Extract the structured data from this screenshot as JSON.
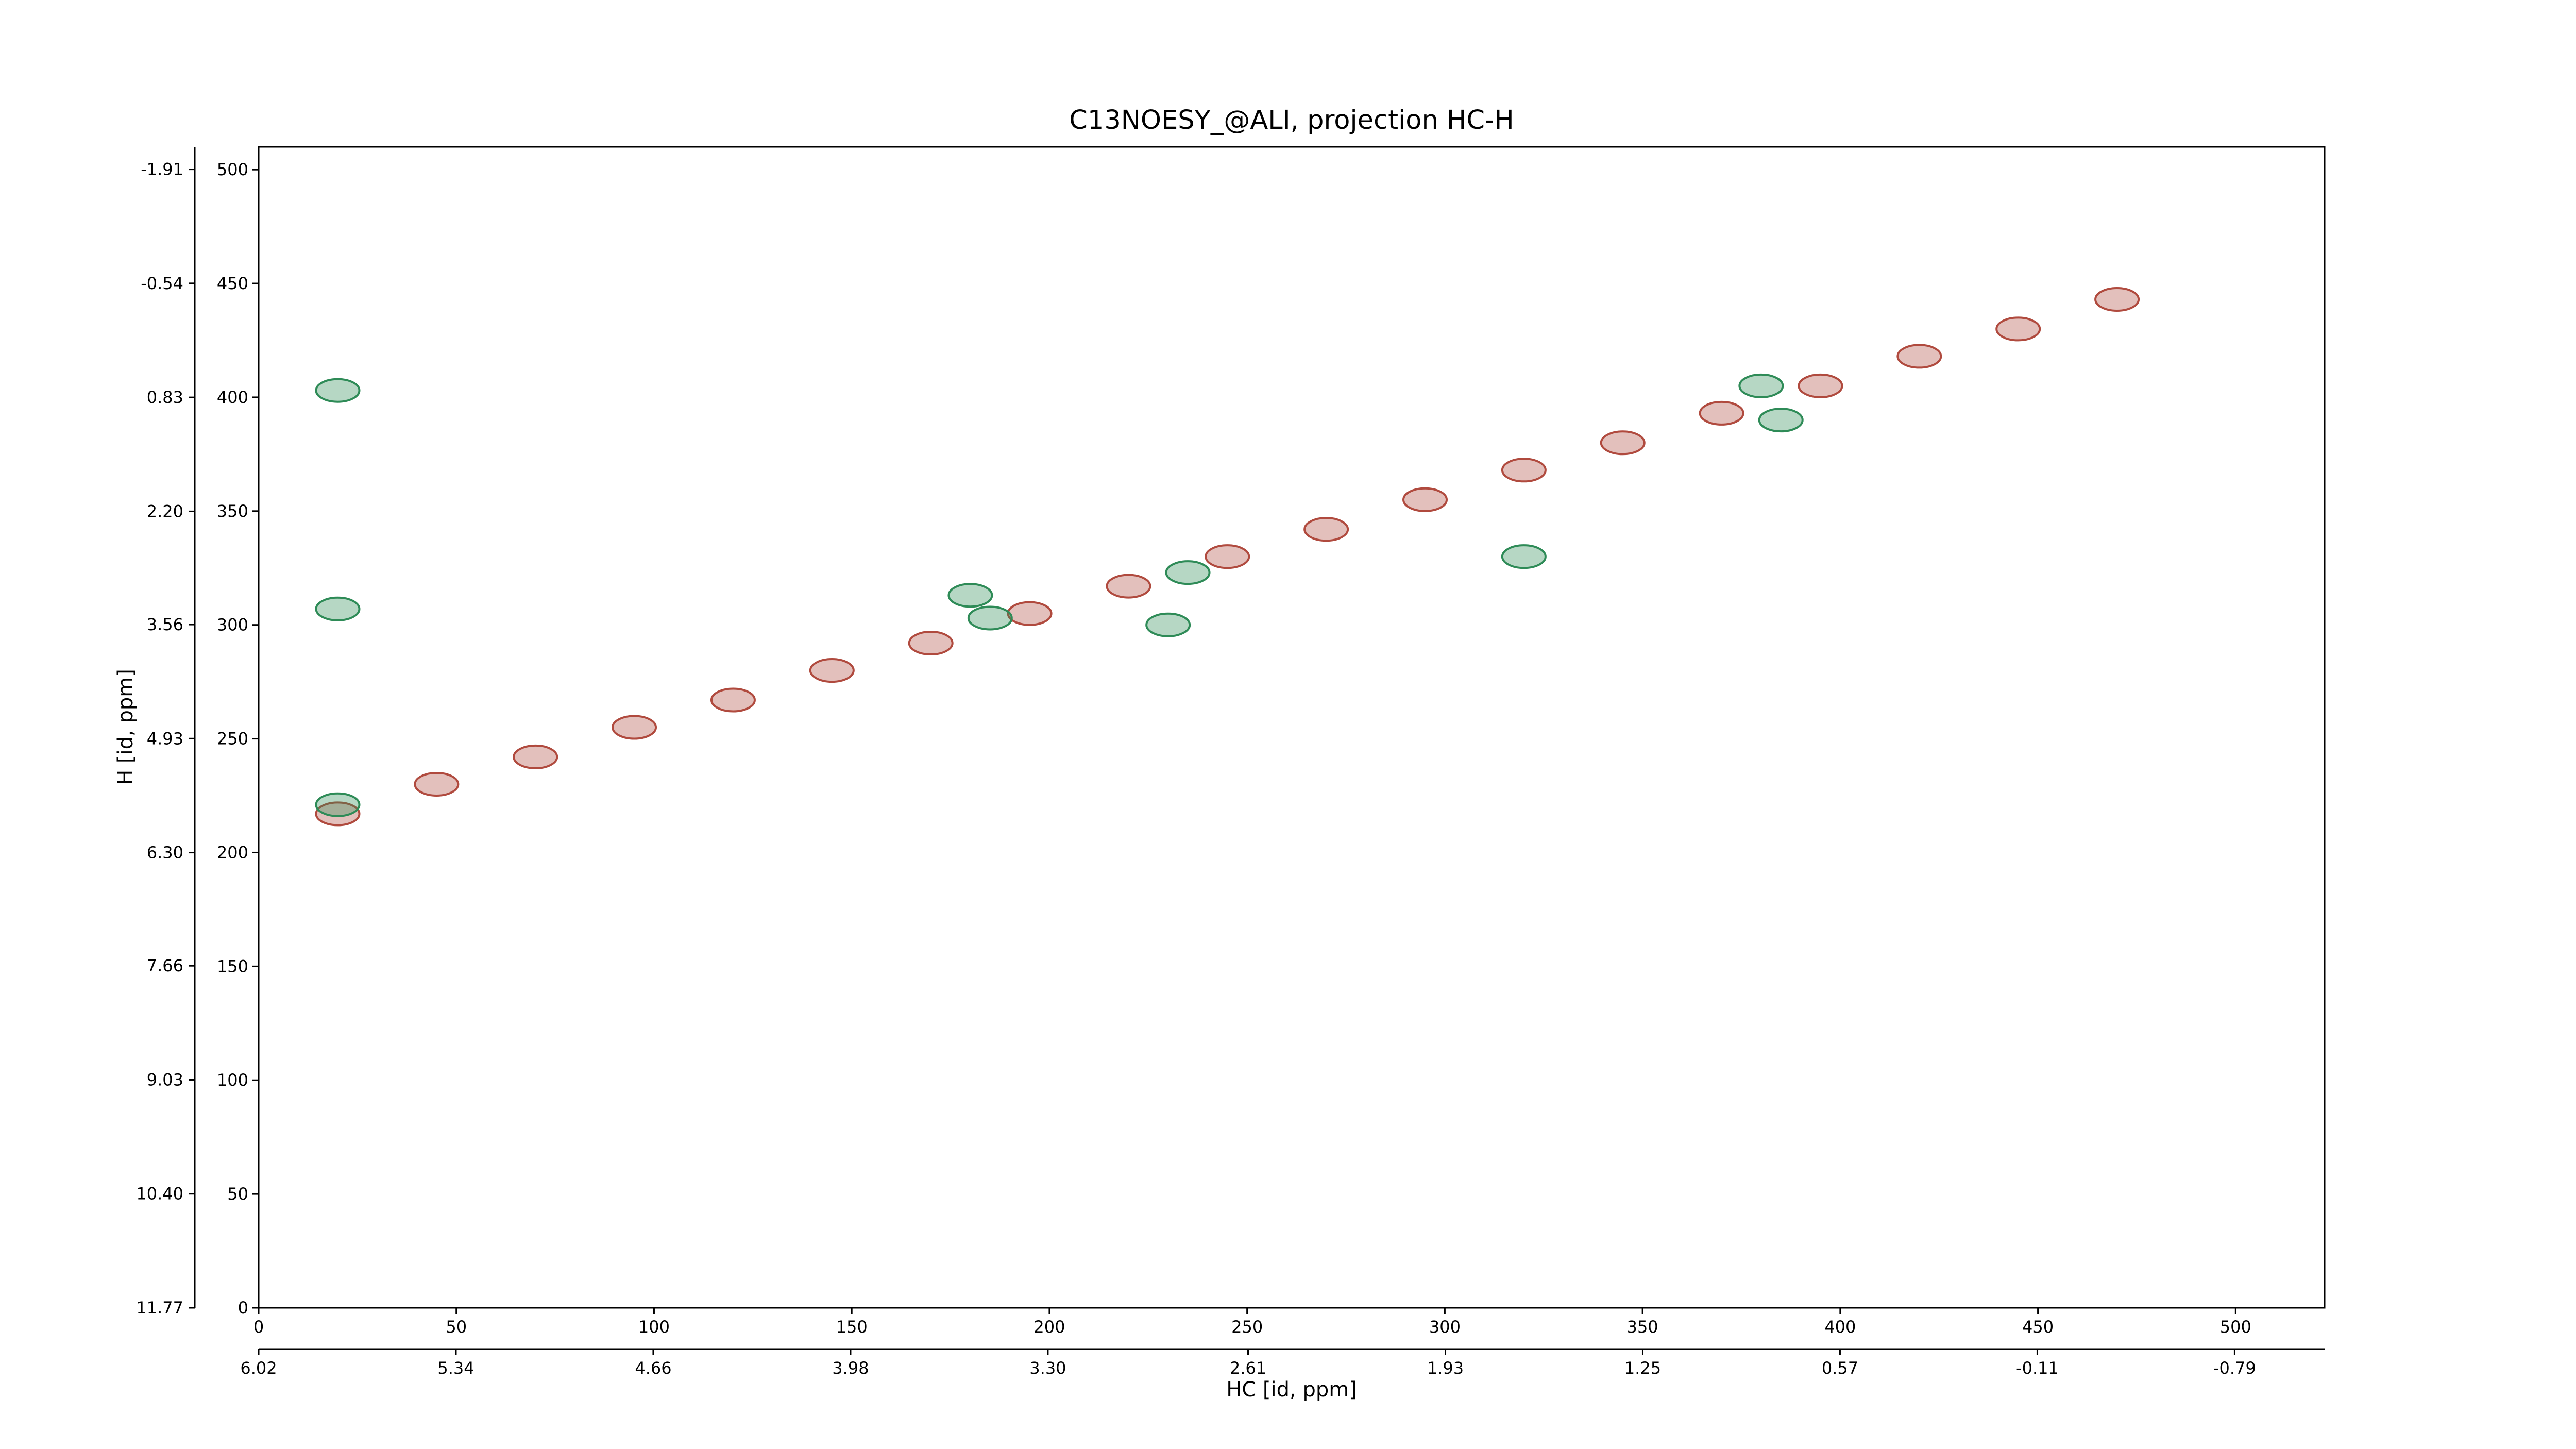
{
  "chart_data": {
    "type": "contour",
    "title": "C13NOESY_@ALI, projection HC-H",
    "xlabel": "HC [id, ppm]",
    "ylabel": "H [id, ppm]",
    "xlim": [
      0,
      522.5
    ],
    "ylim": [
      0,
      510
    ],
    "xticks": [
      0,
      50,
      100,
      150,
      200,
      250,
      300,
      350,
      400,
      450,
      500
    ],
    "yticks": [
      0,
      50,
      100,
      150,
      200,
      250,
      300,
      350,
      400,
      450,
      500
    ],
    "x2lim": [
      6.02,
      -1.1
    ],
    "x2ticks": [
      6.02,
      5.34,
      4.66,
      3.98,
      {
        "value": 3.3,
        "label": "3.30"
      },
      2.61,
      1.93,
      1.25,
      0.57,
      -0.11,
      -0.79
    ],
    "y2lim": [
      11.77,
      -2.18
    ],
    "y2ticks": [
      11.77,
      {
        "value": 10.4,
        "label": "10.40"
      },
      9.03,
      7.66,
      {
        "value": 6.3,
        "label": "6.30"
      },
      4.93,
      3.56,
      {
        "value": 2.2,
        "label": "2.20"
      },
      0.83,
      -0.54,
      -1.91
    ],
    "positive_peaks": {
      "color": "#b04a3e",
      "x": [
        20,
        45,
        70,
        95,
        120,
        145,
        170,
        195,
        220,
        245,
        270,
        295,
        320,
        345,
        370,
        395,
        420,
        445,
        470
      ],
      "y": [
        217,
        230,
        242,
        255,
        267,
        280,
        292,
        305,
        317,
        330,
        342,
        355,
        368,
        380,
        393,
        405,
        418,
        430,
        443
      ]
    },
    "negative_peaks": {
      "color": "#2e8b57",
      "x": [
        20,
        20,
        20,
        180,
        185,
        230,
        235,
        320,
        385,
        380
      ],
      "y": [
        403,
        307,
        221,
        313,
        303,
        300,
        323,
        330,
        390,
        405
      ]
    }
  }
}
